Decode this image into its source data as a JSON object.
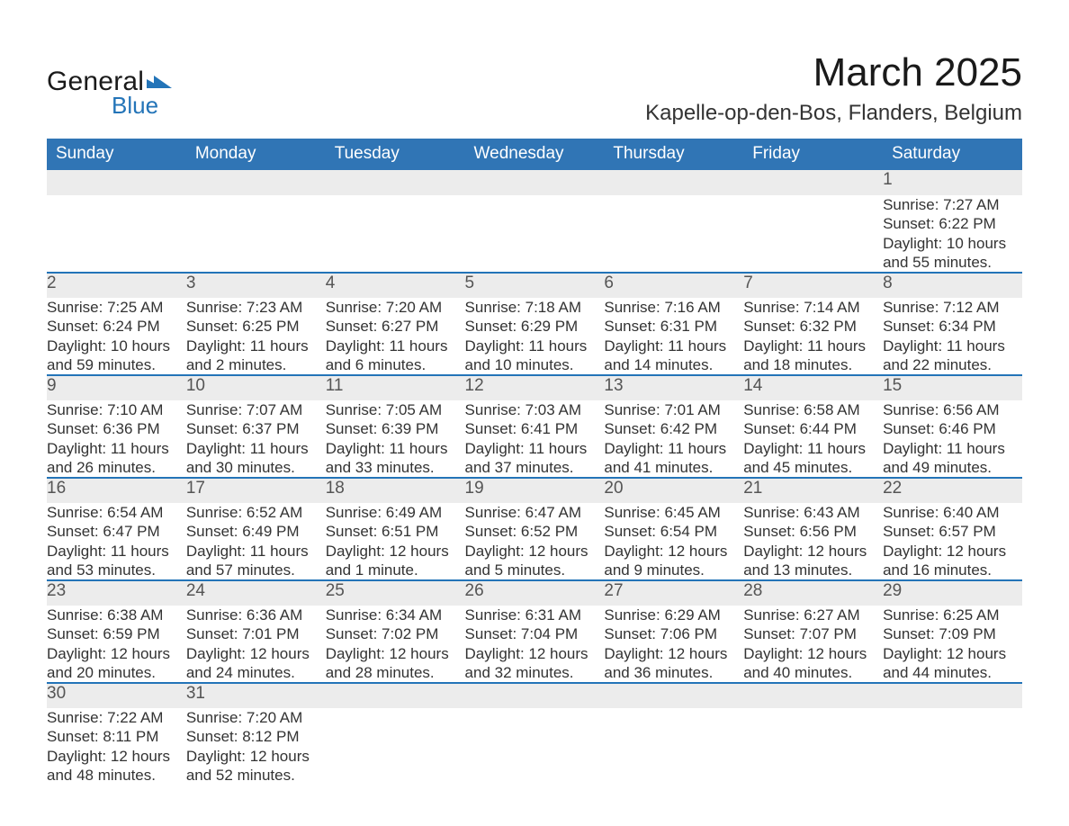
{
  "brand": {
    "general": "General",
    "blue": "Blue",
    "logo_color": "#2374b8"
  },
  "title": "March 2025",
  "location": "Kapelle-op-den-Bos, Flanders, Belgium",
  "colors": {
    "header_bg": "#3075b5",
    "header_text": "#ffffff",
    "row_divider": "#2374b8",
    "daynum_bg": "#ececec",
    "text": "#333333"
  },
  "fonts": {
    "title_size_pt": 33,
    "location_size_pt": 18,
    "header_size_pt": 14,
    "body_size_pt": 13
  },
  "day_headers": [
    "Sunday",
    "Monday",
    "Tuesday",
    "Wednesday",
    "Thursday",
    "Friday",
    "Saturday"
  ],
  "weeks": [
    [
      null,
      null,
      null,
      null,
      null,
      null,
      {
        "n": "1",
        "sr": "Sunrise: 7:27 AM",
        "ss": "Sunset: 6:22 PM",
        "d1": "Daylight: 10 hours",
        "d2": "and 55 minutes."
      }
    ],
    [
      {
        "n": "2",
        "sr": "Sunrise: 7:25 AM",
        "ss": "Sunset: 6:24 PM",
        "d1": "Daylight: 10 hours",
        "d2": "and 59 minutes."
      },
      {
        "n": "3",
        "sr": "Sunrise: 7:23 AM",
        "ss": "Sunset: 6:25 PM",
        "d1": "Daylight: 11 hours",
        "d2": "and 2 minutes."
      },
      {
        "n": "4",
        "sr": "Sunrise: 7:20 AM",
        "ss": "Sunset: 6:27 PM",
        "d1": "Daylight: 11 hours",
        "d2": "and 6 minutes."
      },
      {
        "n": "5",
        "sr": "Sunrise: 7:18 AM",
        "ss": "Sunset: 6:29 PM",
        "d1": "Daylight: 11 hours",
        "d2": "and 10 minutes."
      },
      {
        "n": "6",
        "sr": "Sunrise: 7:16 AM",
        "ss": "Sunset: 6:31 PM",
        "d1": "Daylight: 11 hours",
        "d2": "and 14 minutes."
      },
      {
        "n": "7",
        "sr": "Sunrise: 7:14 AM",
        "ss": "Sunset: 6:32 PM",
        "d1": "Daylight: 11 hours",
        "d2": "and 18 minutes."
      },
      {
        "n": "8",
        "sr": "Sunrise: 7:12 AM",
        "ss": "Sunset: 6:34 PM",
        "d1": "Daylight: 11 hours",
        "d2": "and 22 minutes."
      }
    ],
    [
      {
        "n": "9",
        "sr": "Sunrise: 7:10 AM",
        "ss": "Sunset: 6:36 PM",
        "d1": "Daylight: 11 hours",
        "d2": "and 26 minutes."
      },
      {
        "n": "10",
        "sr": "Sunrise: 7:07 AM",
        "ss": "Sunset: 6:37 PM",
        "d1": "Daylight: 11 hours",
        "d2": "and 30 minutes."
      },
      {
        "n": "11",
        "sr": "Sunrise: 7:05 AM",
        "ss": "Sunset: 6:39 PM",
        "d1": "Daylight: 11 hours",
        "d2": "and 33 minutes."
      },
      {
        "n": "12",
        "sr": "Sunrise: 7:03 AM",
        "ss": "Sunset: 6:41 PM",
        "d1": "Daylight: 11 hours",
        "d2": "and 37 minutes."
      },
      {
        "n": "13",
        "sr": "Sunrise: 7:01 AM",
        "ss": "Sunset: 6:42 PM",
        "d1": "Daylight: 11 hours",
        "d2": "and 41 minutes."
      },
      {
        "n": "14",
        "sr": "Sunrise: 6:58 AM",
        "ss": "Sunset: 6:44 PM",
        "d1": "Daylight: 11 hours",
        "d2": "and 45 minutes."
      },
      {
        "n": "15",
        "sr": "Sunrise: 6:56 AM",
        "ss": "Sunset: 6:46 PM",
        "d1": "Daylight: 11 hours",
        "d2": "and 49 minutes."
      }
    ],
    [
      {
        "n": "16",
        "sr": "Sunrise: 6:54 AM",
        "ss": "Sunset: 6:47 PM",
        "d1": "Daylight: 11 hours",
        "d2": "and 53 minutes."
      },
      {
        "n": "17",
        "sr": "Sunrise: 6:52 AM",
        "ss": "Sunset: 6:49 PM",
        "d1": "Daylight: 11 hours",
        "d2": "and 57 minutes."
      },
      {
        "n": "18",
        "sr": "Sunrise: 6:49 AM",
        "ss": "Sunset: 6:51 PM",
        "d1": "Daylight: 12 hours",
        "d2": "and 1 minute."
      },
      {
        "n": "19",
        "sr": "Sunrise: 6:47 AM",
        "ss": "Sunset: 6:52 PM",
        "d1": "Daylight: 12 hours",
        "d2": "and 5 minutes."
      },
      {
        "n": "20",
        "sr": "Sunrise: 6:45 AM",
        "ss": "Sunset: 6:54 PM",
        "d1": "Daylight: 12 hours",
        "d2": "and 9 minutes."
      },
      {
        "n": "21",
        "sr": "Sunrise: 6:43 AM",
        "ss": "Sunset: 6:56 PM",
        "d1": "Daylight: 12 hours",
        "d2": "and 13 minutes."
      },
      {
        "n": "22",
        "sr": "Sunrise: 6:40 AM",
        "ss": "Sunset: 6:57 PM",
        "d1": "Daylight: 12 hours",
        "d2": "and 16 minutes."
      }
    ],
    [
      {
        "n": "23",
        "sr": "Sunrise: 6:38 AM",
        "ss": "Sunset: 6:59 PM",
        "d1": "Daylight: 12 hours",
        "d2": "and 20 minutes."
      },
      {
        "n": "24",
        "sr": "Sunrise: 6:36 AM",
        "ss": "Sunset: 7:01 PM",
        "d1": "Daylight: 12 hours",
        "d2": "and 24 minutes."
      },
      {
        "n": "25",
        "sr": "Sunrise: 6:34 AM",
        "ss": "Sunset: 7:02 PM",
        "d1": "Daylight: 12 hours",
        "d2": "and 28 minutes."
      },
      {
        "n": "26",
        "sr": "Sunrise: 6:31 AM",
        "ss": "Sunset: 7:04 PM",
        "d1": "Daylight: 12 hours",
        "d2": "and 32 minutes."
      },
      {
        "n": "27",
        "sr": "Sunrise: 6:29 AM",
        "ss": "Sunset: 7:06 PM",
        "d1": "Daylight: 12 hours",
        "d2": "and 36 minutes."
      },
      {
        "n": "28",
        "sr": "Sunrise: 6:27 AM",
        "ss": "Sunset: 7:07 PM",
        "d1": "Daylight: 12 hours",
        "d2": "and 40 minutes."
      },
      {
        "n": "29",
        "sr": "Sunrise: 6:25 AM",
        "ss": "Sunset: 7:09 PM",
        "d1": "Daylight: 12 hours",
        "d2": "and 44 minutes."
      }
    ],
    [
      {
        "n": "30",
        "sr": "Sunrise: 7:22 AM",
        "ss": "Sunset: 8:11 PM",
        "d1": "Daylight: 12 hours",
        "d2": "and 48 minutes."
      },
      {
        "n": "31",
        "sr": "Sunrise: 7:20 AM",
        "ss": "Sunset: 8:12 PM",
        "d1": "Daylight: 12 hours",
        "d2": "and 52 minutes."
      },
      null,
      null,
      null,
      null,
      null
    ]
  ]
}
